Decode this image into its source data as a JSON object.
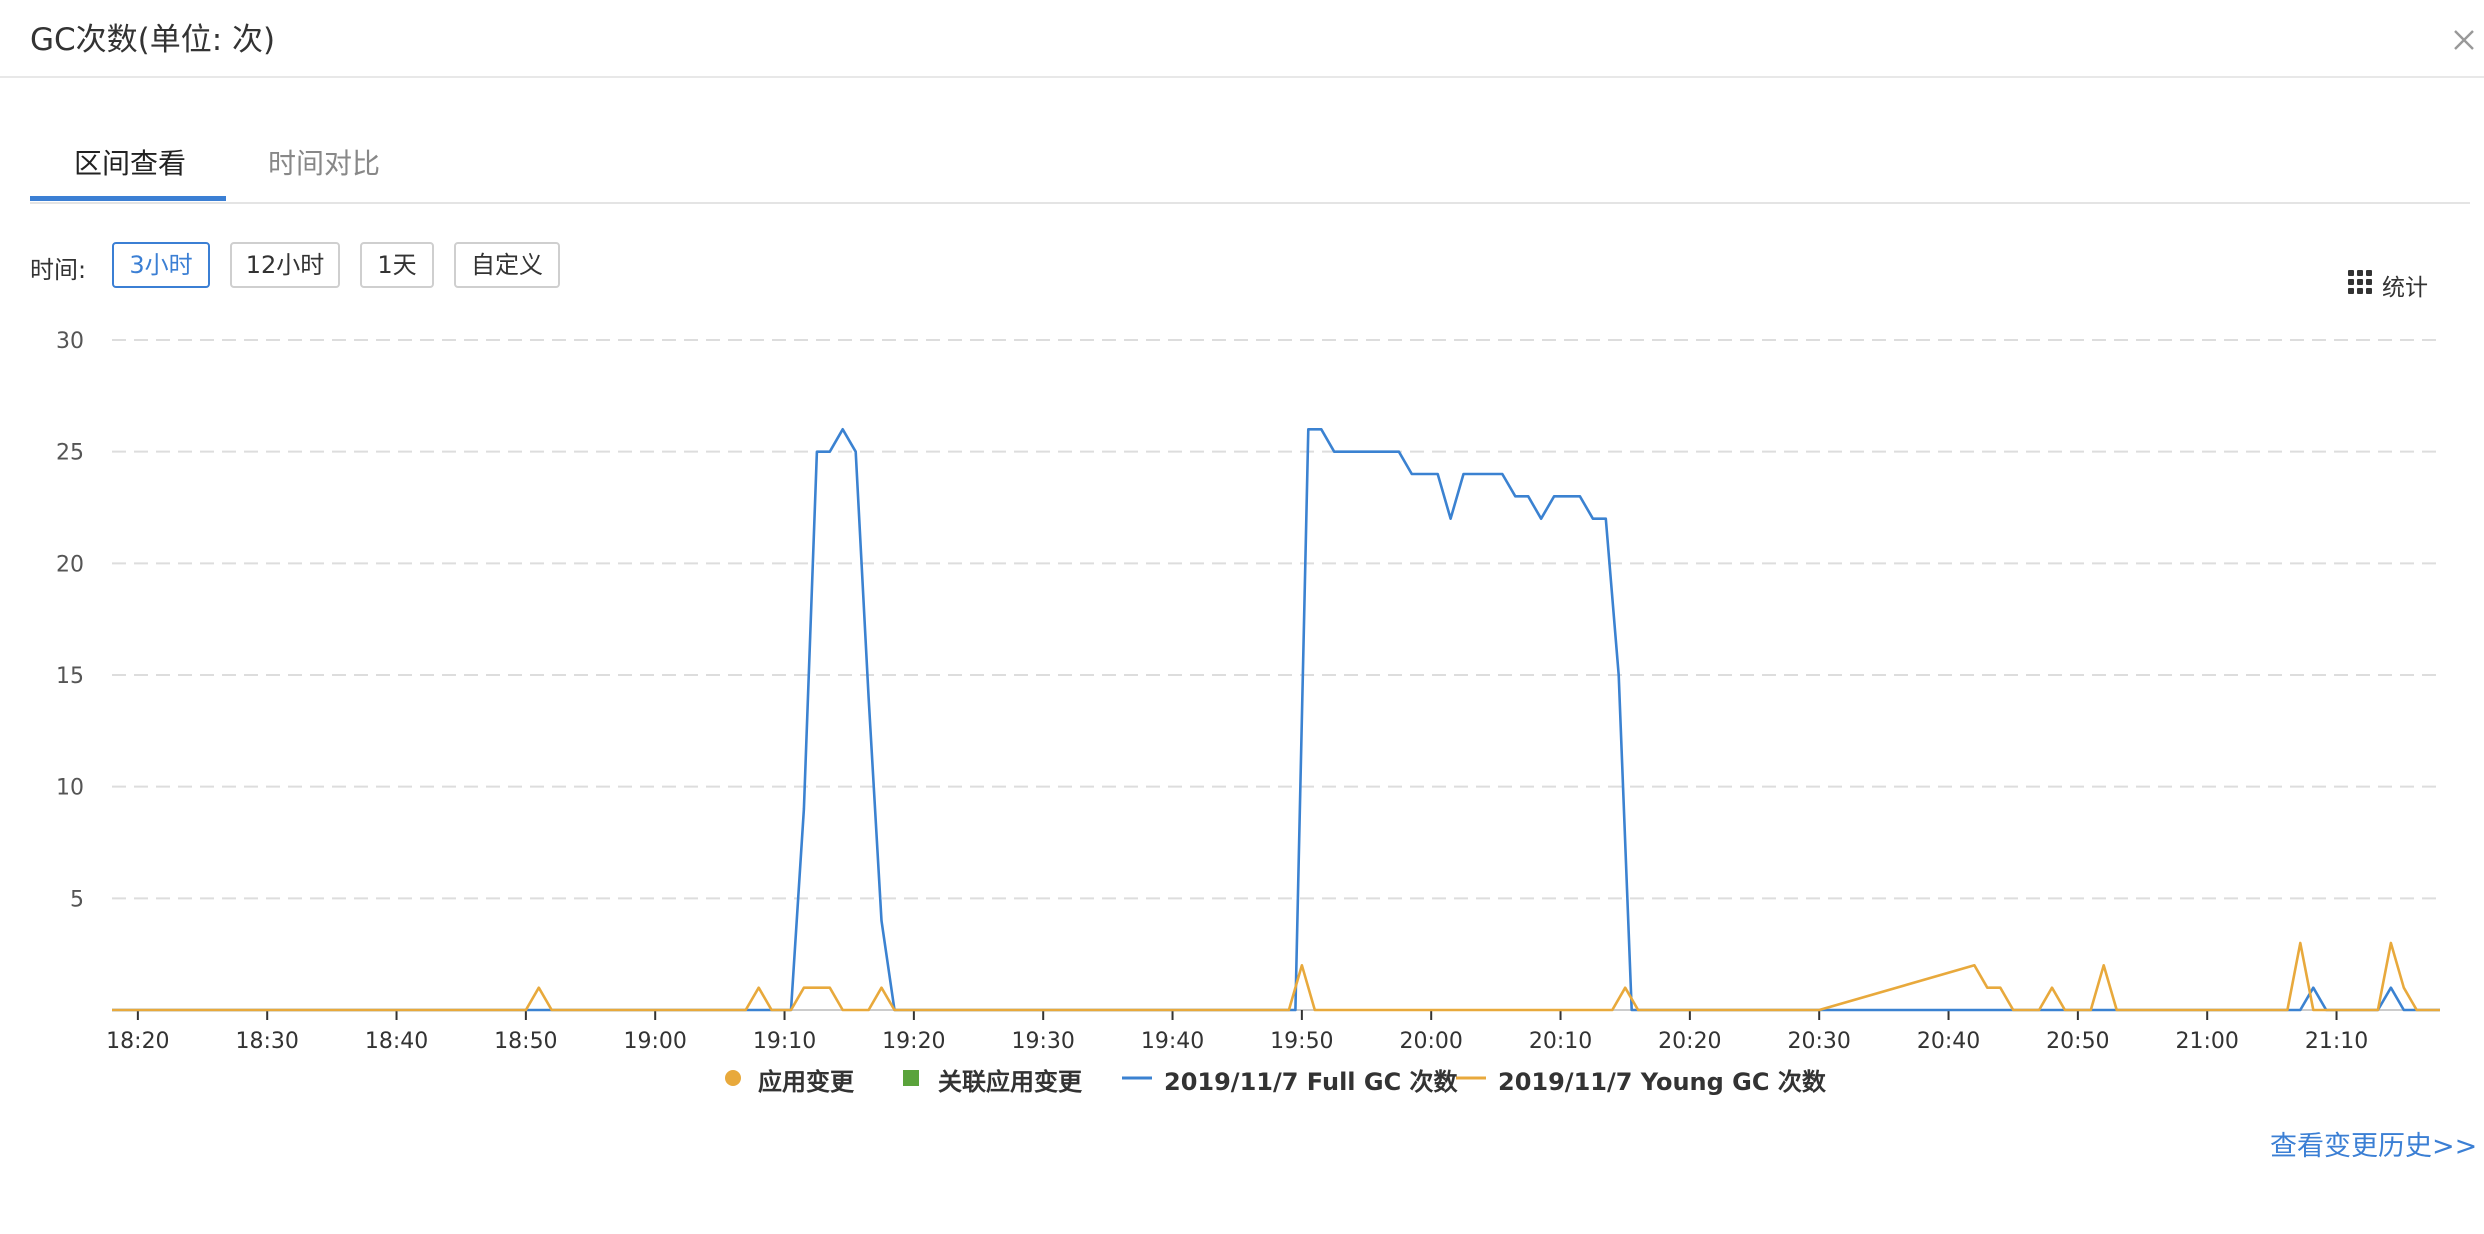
{
  "dialog": {
    "title": "GC次数(单位: 次)",
    "close_icon": "close-icon"
  },
  "tabs": [
    {
      "label": "区间查看",
      "active": true
    },
    {
      "label": "时间对比",
      "active": false
    }
  ],
  "time_range": {
    "label": "时间:",
    "options": [
      "3小时",
      "12小时",
      "1天",
      "自定义"
    ],
    "selected": "3小时"
  },
  "stats_button": {
    "label": "统计",
    "icon": "grid-icon"
  },
  "legend": [
    {
      "label": "应用变更",
      "marker": "circle",
      "color": "#e8a93c"
    },
    {
      "label": "关联应用变更",
      "marker": "square",
      "color": "#5aa33b"
    },
    {
      "label": "2019/11/7 Full GC 次数",
      "marker": "line",
      "color": "#3b82d1"
    },
    {
      "label": "2019/11/7 Young GC 次数",
      "marker": "line",
      "color": "#e8a93c"
    }
  ],
  "footer": {
    "history_link": "查看变更历史>>"
  },
  "colors": {
    "accent": "#3b7fd4",
    "full_gc": "#3b82d1",
    "young_gc": "#e8a93c"
  },
  "chart_data": {
    "type": "line",
    "x_unit": "minutes",
    "x_ticks": [
      {
        "t": 1100,
        "label": "18:20"
      },
      {
        "t": 1110,
        "label": "18:30"
      },
      {
        "t": 1120,
        "label": "18:40"
      },
      {
        "t": 1130,
        "label": "18:50"
      },
      {
        "t": 1140,
        "label": "19:00"
      },
      {
        "t": 1150,
        "label": "19:10"
      },
      {
        "t": 1160,
        "label": "19:20"
      },
      {
        "t": 1170,
        "label": "19:30"
      },
      {
        "t": 1180,
        "label": "19:40"
      },
      {
        "t": 1190,
        "label": "19:50"
      },
      {
        "t": 1200,
        "label": "20:00"
      },
      {
        "t": 1210,
        "label": "20:10"
      },
      {
        "t": 1220,
        "label": "20:20"
      },
      {
        "t": 1230,
        "label": "20:30"
      },
      {
        "t": 1240,
        "label": "20:40"
      },
      {
        "t": 1250,
        "label": "20:50"
      },
      {
        "t": 1260,
        "label": "21:00"
      },
      {
        "t": 1270,
        "label": "21:10"
      }
    ],
    "xlim": [
      1098,
      1278
    ],
    "y_ticks": [
      5,
      10,
      15,
      20,
      25,
      30
    ],
    "ylim": [
      0,
      30
    ],
    "grid": true,
    "legend_position": "bottom",
    "series": [
      {
        "name": "2019/11/7 Full GC 次数",
        "color": "#3b82d1",
        "points": [
          [
            1098,
            0
          ],
          [
            1150.5,
            0
          ],
          [
            1151.5,
            9
          ],
          [
            1152.5,
            25
          ],
          [
            1153.5,
            25
          ],
          [
            1154.5,
            26
          ],
          [
            1155.5,
            25
          ],
          [
            1156.5,
            14
          ],
          [
            1157.5,
            4
          ],
          [
            1158.5,
            0
          ],
          [
            1189.5,
            0
          ],
          [
            1190.5,
            26
          ],
          [
            1191.5,
            26
          ],
          [
            1192.5,
            25
          ],
          [
            1193.5,
            25
          ],
          [
            1194.5,
            25
          ],
          [
            1195.5,
            25
          ],
          [
            1196.5,
            25
          ],
          [
            1197.5,
            25
          ],
          [
            1198.5,
            24
          ],
          [
            1199.5,
            24
          ],
          [
            1200.5,
            24
          ],
          [
            1201.5,
            22
          ],
          [
            1202.5,
            24
          ],
          [
            1203.5,
            24
          ],
          [
            1204.5,
            24
          ],
          [
            1205.5,
            24
          ],
          [
            1206.5,
            23
          ],
          [
            1207.5,
            23
          ],
          [
            1208.5,
            22
          ],
          [
            1209.5,
            23
          ],
          [
            1210.5,
            23
          ],
          [
            1211.5,
            23
          ],
          [
            1212.5,
            22
          ],
          [
            1213.5,
            22
          ],
          [
            1214.5,
            15
          ],
          [
            1215.5,
            0
          ],
          [
            1267.2,
            0
          ],
          [
            1268.2,
            1
          ],
          [
            1269.2,
            0
          ],
          [
            1273.2,
            0
          ],
          [
            1274.2,
            1
          ],
          [
            1275.2,
            0
          ],
          [
            1278,
            0
          ]
        ]
      },
      {
        "name": "2019/11/7 Young GC 次数",
        "color": "#e8a93c",
        "points": [
          [
            1098,
            0
          ],
          [
            1130,
            0
          ],
          [
            1131,
            1
          ],
          [
            1132,
            0
          ],
          [
            1147,
            0
          ],
          [
            1148,
            1
          ],
          [
            1149,
            0
          ],
          [
            1150.5,
            0
          ],
          [
            1151.5,
            1
          ],
          [
            1152.5,
            1
          ],
          [
            1153.5,
            1
          ],
          [
            1154.5,
            0
          ],
          [
            1156.5,
            0
          ],
          [
            1157.5,
            1
          ],
          [
            1158.5,
            0
          ],
          [
            1189,
            0
          ],
          [
            1190,
            2
          ],
          [
            1191,
            0
          ],
          [
            1214,
            0
          ],
          [
            1215,
            1
          ],
          [
            1216,
            0
          ],
          [
            1230,
            0
          ],
          [
            1242,
            2
          ],
          [
            1243,
            1
          ],
          [
            1244,
            1
          ],
          [
            1245,
            0
          ],
          [
            1247,
            0
          ],
          [
            1248,
            1
          ],
          [
            1249,
            0
          ],
          [
            1251,
            0
          ],
          [
            1252,
            2
          ],
          [
            1253,
            0
          ],
          [
            1266.2,
            0
          ],
          [
            1267.2,
            3
          ],
          [
            1268.2,
            0
          ],
          [
            1273.2,
            0
          ],
          [
            1274.2,
            3
          ],
          [
            1275.2,
            1
          ],
          [
            1276.2,
            0
          ],
          [
            1278,
            0
          ]
        ]
      }
    ]
  }
}
